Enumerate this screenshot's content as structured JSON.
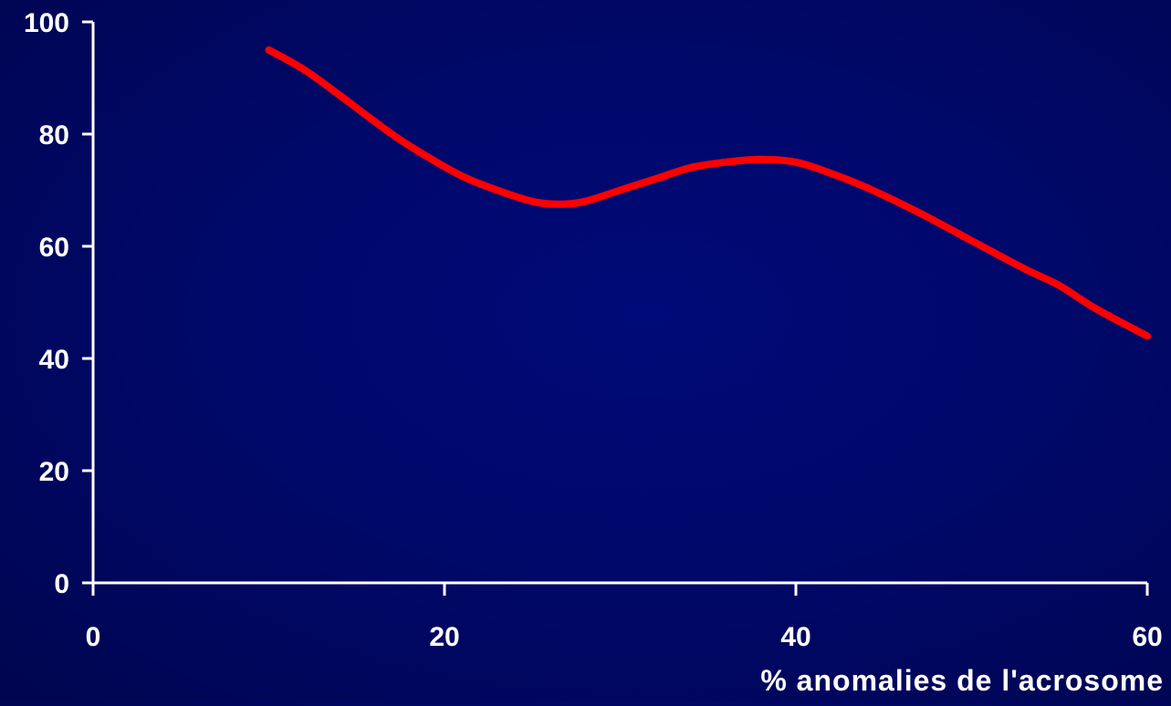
{
  "colors": {
    "background": "#000a70",
    "axis": "#ffffff",
    "text": "#ffffff",
    "series_line": "#ff0000"
  },
  "chart_data": {
    "type": "line",
    "title": "",
    "xlabel": "% anomalies de l'acrosome",
    "ylabel": "",
    "xlim": [
      0,
      60
    ],
    "ylim": [
      0,
      100
    ],
    "x_ticks": [
      0,
      20,
      40,
      60
    ],
    "y_ticks": [
      0,
      20,
      40,
      60,
      80,
      100
    ],
    "grid": false,
    "legend": "none",
    "smooth": true,
    "series": [
      {
        "x": [
          10,
          12,
          14,
          17,
          19,
          21,
          23,
          25,
          26.5,
          28,
          30,
          32,
          34,
          36,
          38,
          40,
          42,
          44,
          47,
          50,
          53,
          55,
          57,
          60
        ],
        "y": [
          95,
          91.5,
          87,
          80,
          76,
          72.5,
          70,
          68,
          67.5,
          68,
          70,
          72,
          74,
          75,
          75.5,
          75,
          73,
          70.5,
          66,
          61,
          56,
          53,
          49,
          44
        ]
      }
    ]
  }
}
